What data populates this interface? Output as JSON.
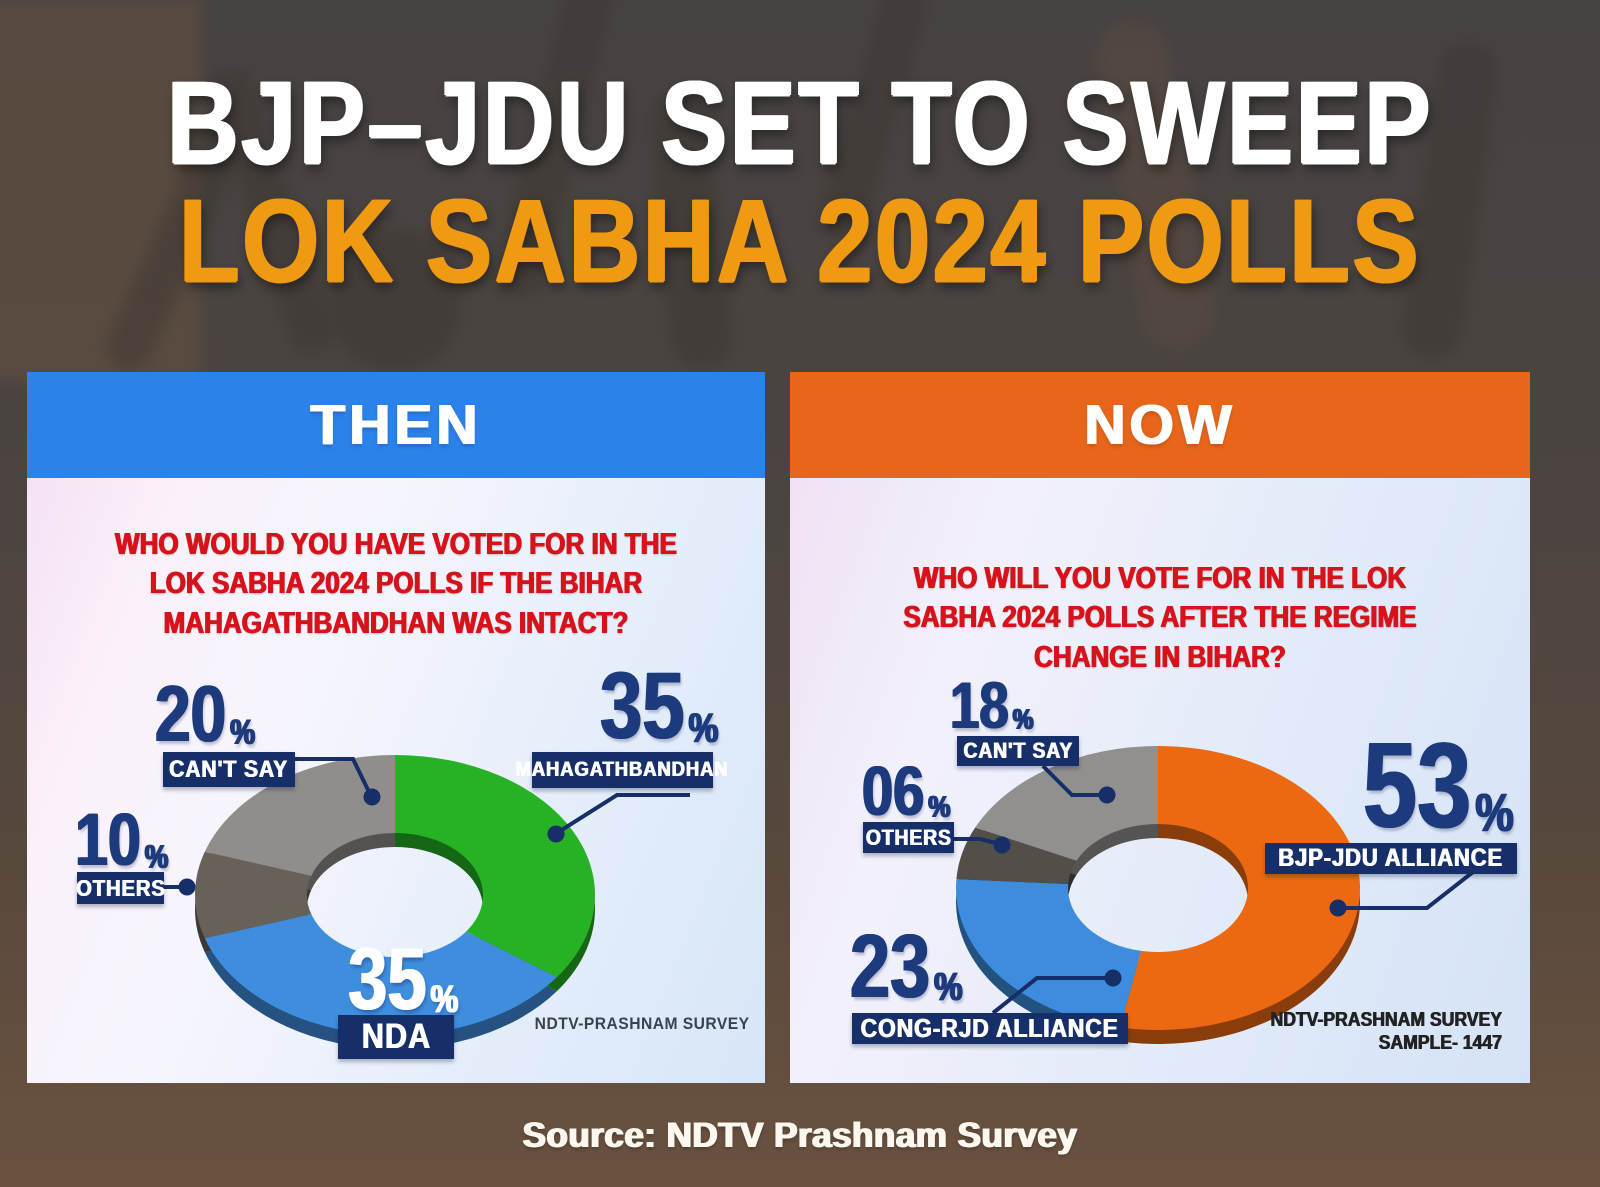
{
  "percent_symbol": "%",
  "title": {
    "line1": "BJP–JDU SET TO SWEEP",
    "line2": "LOK SABHA 2024 POLLS",
    "line2_color": "#f09a11"
  },
  "source_footer": "Source: NDTV Prashnam Survey",
  "colors": {
    "accent_navy_numbers": "#1c3a7c",
    "badge_navy": "#162f68",
    "question_red": "#d6131b",
    "then_header_blue": "#2b82e9",
    "now_header_orange": "#e7661b"
  },
  "panels": [
    {
      "header": "THEN",
      "header_color": "#2b82e9",
      "question_lines": [
        "WHO WOULD YOU HAVE VOTED FOR IN THE",
        "LOK SABHA 2024 POLLS IF THE BIHAR",
        "MAHAGATHBANDHAN WAS INTACT?"
      ],
      "footer_lines": [
        "NDTV-PRASHNAM SURVEY"
      ]
    },
    {
      "header": "NOW",
      "header_color": "#e7661b",
      "question_lines": [
        "WHO WILL YOU VOTE FOR IN THE LOK",
        "SABHA 2024 POLLS AFTER THE REGIME",
        "CHANGE IN BIHAR?"
      ],
      "footer_lines": [
        "NDTV-PRASHNAM SURVEY",
        "SAMPLE- 1447"
      ]
    }
  ],
  "chart_data": [
    {
      "type": "pie",
      "subtype": "3d-donut",
      "title": "WHO WOULD YOU HAVE VOTED FOR IN THE LOK SABHA 2024 POLLS IF THE BIHAR MAHAGATHBANDHAN WAS INTACT?",
      "start_angle": "12-oclock",
      "direction": "clockwise",
      "source_note": "NDTV-PRASHNAM SURVEY",
      "slices": [
        {
          "label": "MAHAGATHBANDHAN",
          "value": 35,
          "display": "35",
          "color": "#26b224"
        },
        {
          "label": "NDA",
          "value": 35,
          "display": "35",
          "color": "#3f8ede"
        },
        {
          "label": "OTHERS",
          "value": 10,
          "display": "10",
          "color": "#68615a"
        },
        {
          "label": "CAN'T SAY",
          "value": 20,
          "display": "20",
          "color": "#908d8b"
        }
      ]
    },
    {
      "type": "pie",
      "subtype": "3d-donut",
      "title": "WHO WILL YOU VOTE FOR IN THE LOK SABHA 2024 POLLS AFTER THE REGIME CHANGE IN BIHAR?",
      "start_angle": "12-oclock",
      "direction": "clockwise",
      "source_note": "NDTV-PRASHNAM SURVEY SAMPLE- 1447",
      "sample_size": "1447",
      "slices": [
        {
          "label": "BJP-JDU ALLIANCE",
          "value": 53,
          "display": "53",
          "color": "#ec6911"
        },
        {
          "label": "CONG-RJD ALLIANCE",
          "value": 23,
          "display": "23",
          "color": "#3d8cdd"
        },
        {
          "label": "OTHERS",
          "value": 6,
          "display": "06",
          "color": "#534e48"
        },
        {
          "label": "CAN'T SAY",
          "value": 18,
          "display": "18",
          "color": "#92908e"
        }
      ]
    }
  ]
}
